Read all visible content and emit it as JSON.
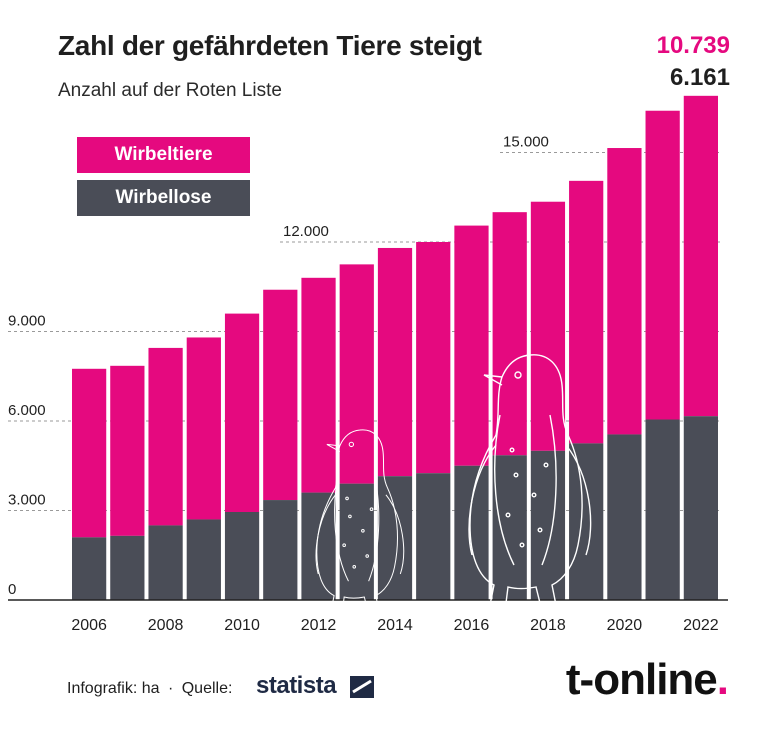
{
  "header": {
    "title": "Zahl der gefährdeten Tiere steigt",
    "subtitle": "Anzahl auf der Roten Liste"
  },
  "highlight": {
    "vertebrates_last": "10.739",
    "invertebrates_last": "6.161"
  },
  "footer": {
    "credit": "Infografik: ha",
    "separator": "·",
    "source_label": "Quelle:",
    "source_brand": "statista",
    "publisher": "t-online",
    "publisher_dot": "."
  },
  "colors": {
    "vertebrates": "#e5097f",
    "invertebrates": "#4a4d57",
    "grid": "#9a9a9a",
    "text": "#1f1f1f"
  },
  "decoration": [
    "penguin-drawing-left",
    "penguin-drawing-right"
  ],
  "chart_data": {
    "type": "bar",
    "stacked": true,
    "categories": [
      "2006",
      "2007",
      "2008",
      "2009",
      "2010",
      "2011",
      "2012",
      "2013",
      "2014",
      "2015",
      "2016",
      "2017",
      "2018",
      "2019",
      "2020",
      "2021",
      "2022"
    ],
    "x_tick_labels": [
      "2006",
      "2008",
      "2010",
      "2012",
      "2014",
      "2016",
      "2018",
      "2020",
      "2022"
    ],
    "series": [
      {
        "name": "Wirbellose",
        "values": [
          2100,
          2150,
          2500,
          2700,
          2950,
          3350,
          3600,
          3900,
          4150,
          4250,
          4500,
          4850,
          5000,
          5250,
          5550,
          6050,
          6161
        ]
      },
      {
        "name": "Wirbeltiere",
        "values": [
          5650,
          5700,
          5950,
          6100,
          6650,
          7050,
          7200,
          7350,
          7650,
          7750,
          8050,
          8150,
          8350,
          8800,
          9600,
          10350,
          10739
        ]
      }
    ],
    "y_ticks": [
      "0",
      "3.000",
      "6.000",
      "9.000",
      "12.000",
      "15.000"
    ],
    "y_tick_values": [
      0,
      3000,
      6000,
      9000,
      12000,
      15000
    ],
    "ylim": [
      0,
      17000
    ],
    "grid": "dashed horizontal",
    "legend": "top-left"
  }
}
